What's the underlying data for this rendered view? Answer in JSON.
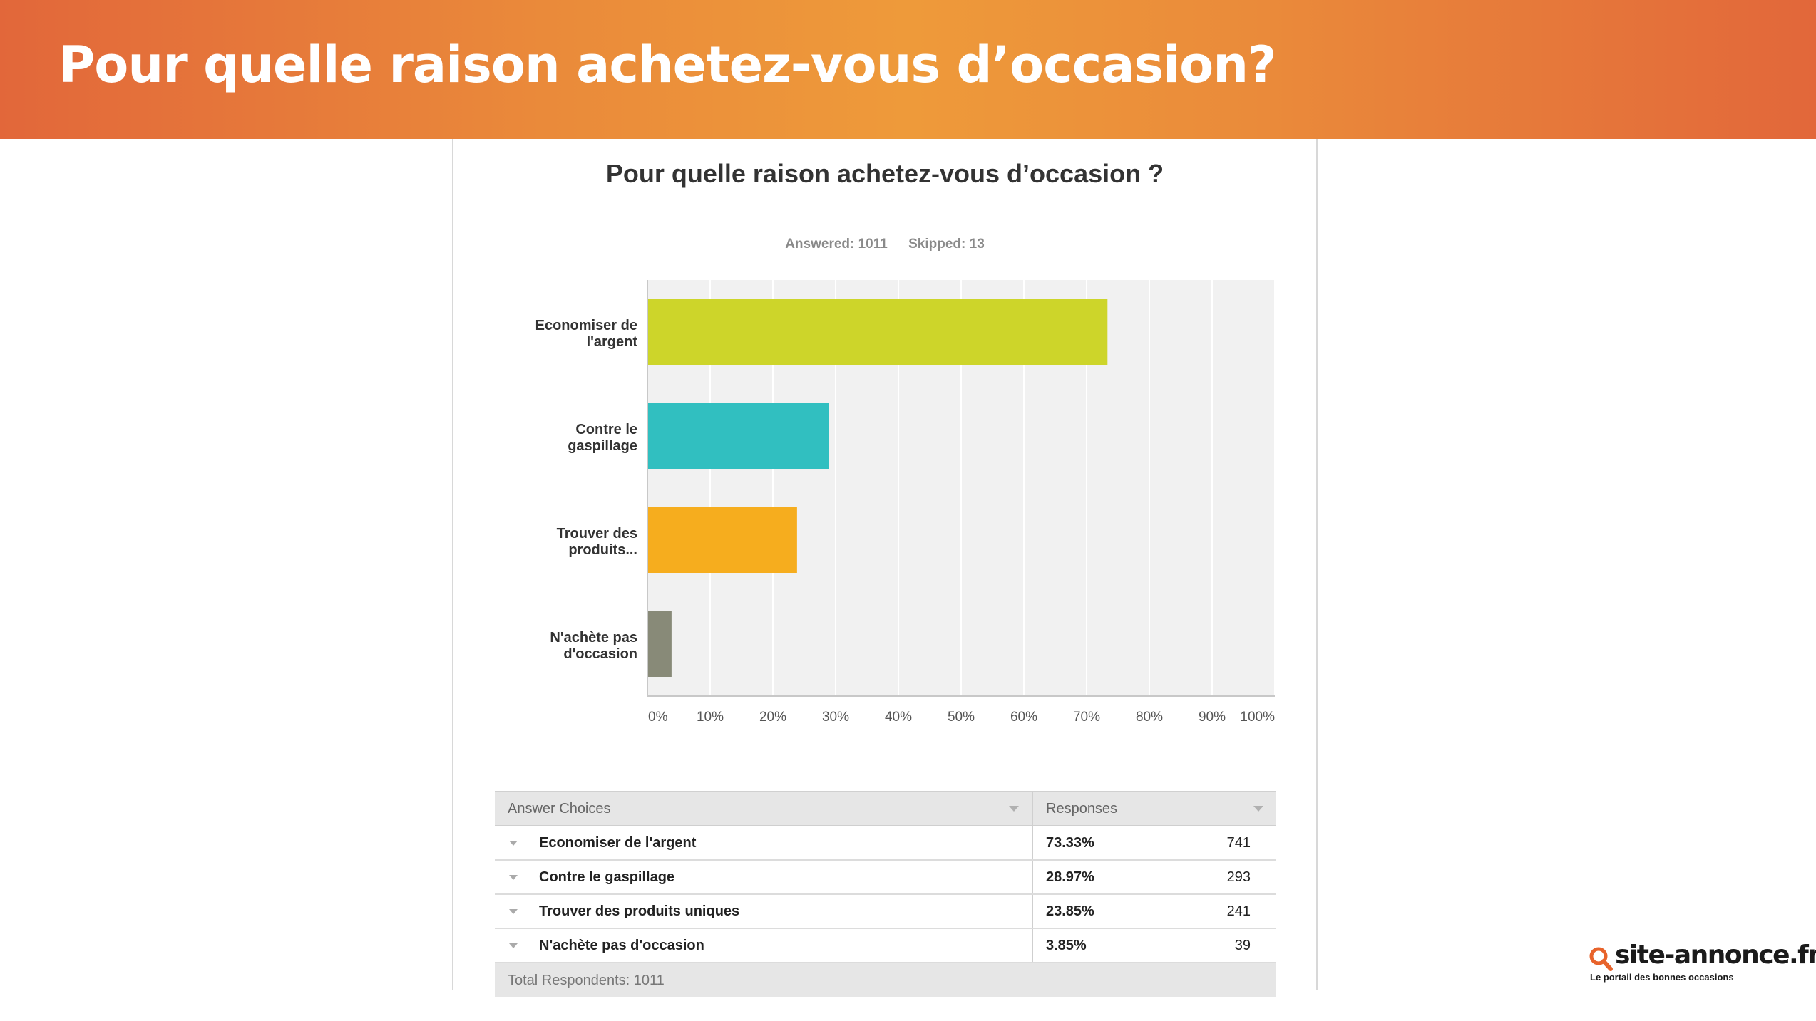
{
  "banner": {
    "title": "Pour quelle raison achetez-vous d’occasion?"
  },
  "chart_data": {
    "type": "bar",
    "orientation": "horizontal",
    "title": "Pour quelle raison achetez-vous d’occasion  ?",
    "summary": {
      "answered": "Answered: 1011",
      "skipped": "Skipped: 13"
    },
    "categories": [
      [
        "Economiser de",
        "l'argent"
      ],
      [
        "Contre le",
        "gaspillage"
      ],
      [
        "Trouver des",
        "produits..."
      ],
      [
        "N'achète pas",
        "d'occasion"
      ]
    ],
    "values": [
      73.33,
      28.97,
      23.85,
      3.85
    ],
    "colors": [
      "#cdd52a",
      "#31bfc0",
      "#f6ad1e",
      "#888a78"
    ],
    "xlim": [
      0,
      100
    ],
    "xticks": [
      "0%",
      "10%",
      "20%",
      "30%",
      "40%",
      "50%",
      "60%",
      "70%",
      "80%",
      "90%",
      "100%"
    ],
    "grid": true
  },
  "table": {
    "headers": {
      "choice": "Answer Choices",
      "responses": "Responses"
    },
    "rows": [
      {
        "choice": "Economiser de l'argent",
        "percent": "73.33%",
        "count": "741"
      },
      {
        "choice": "Contre le gaspillage",
        "percent": "28.97%",
        "count": "293"
      },
      {
        "choice": "Trouver des produits uniques",
        "percent": "23.85%",
        "count": "241"
      },
      {
        "choice": "N'achète pas d'occasion",
        "percent": "3.85%",
        "count": "39"
      }
    ],
    "total": "Total Respondents: 1011"
  },
  "logo": {
    "name": "site-annonce.fr",
    "tagline": "Le portail des bonnes occasions",
    "accent_color": "#e8632b",
    "icon": "magnifier-icon"
  }
}
